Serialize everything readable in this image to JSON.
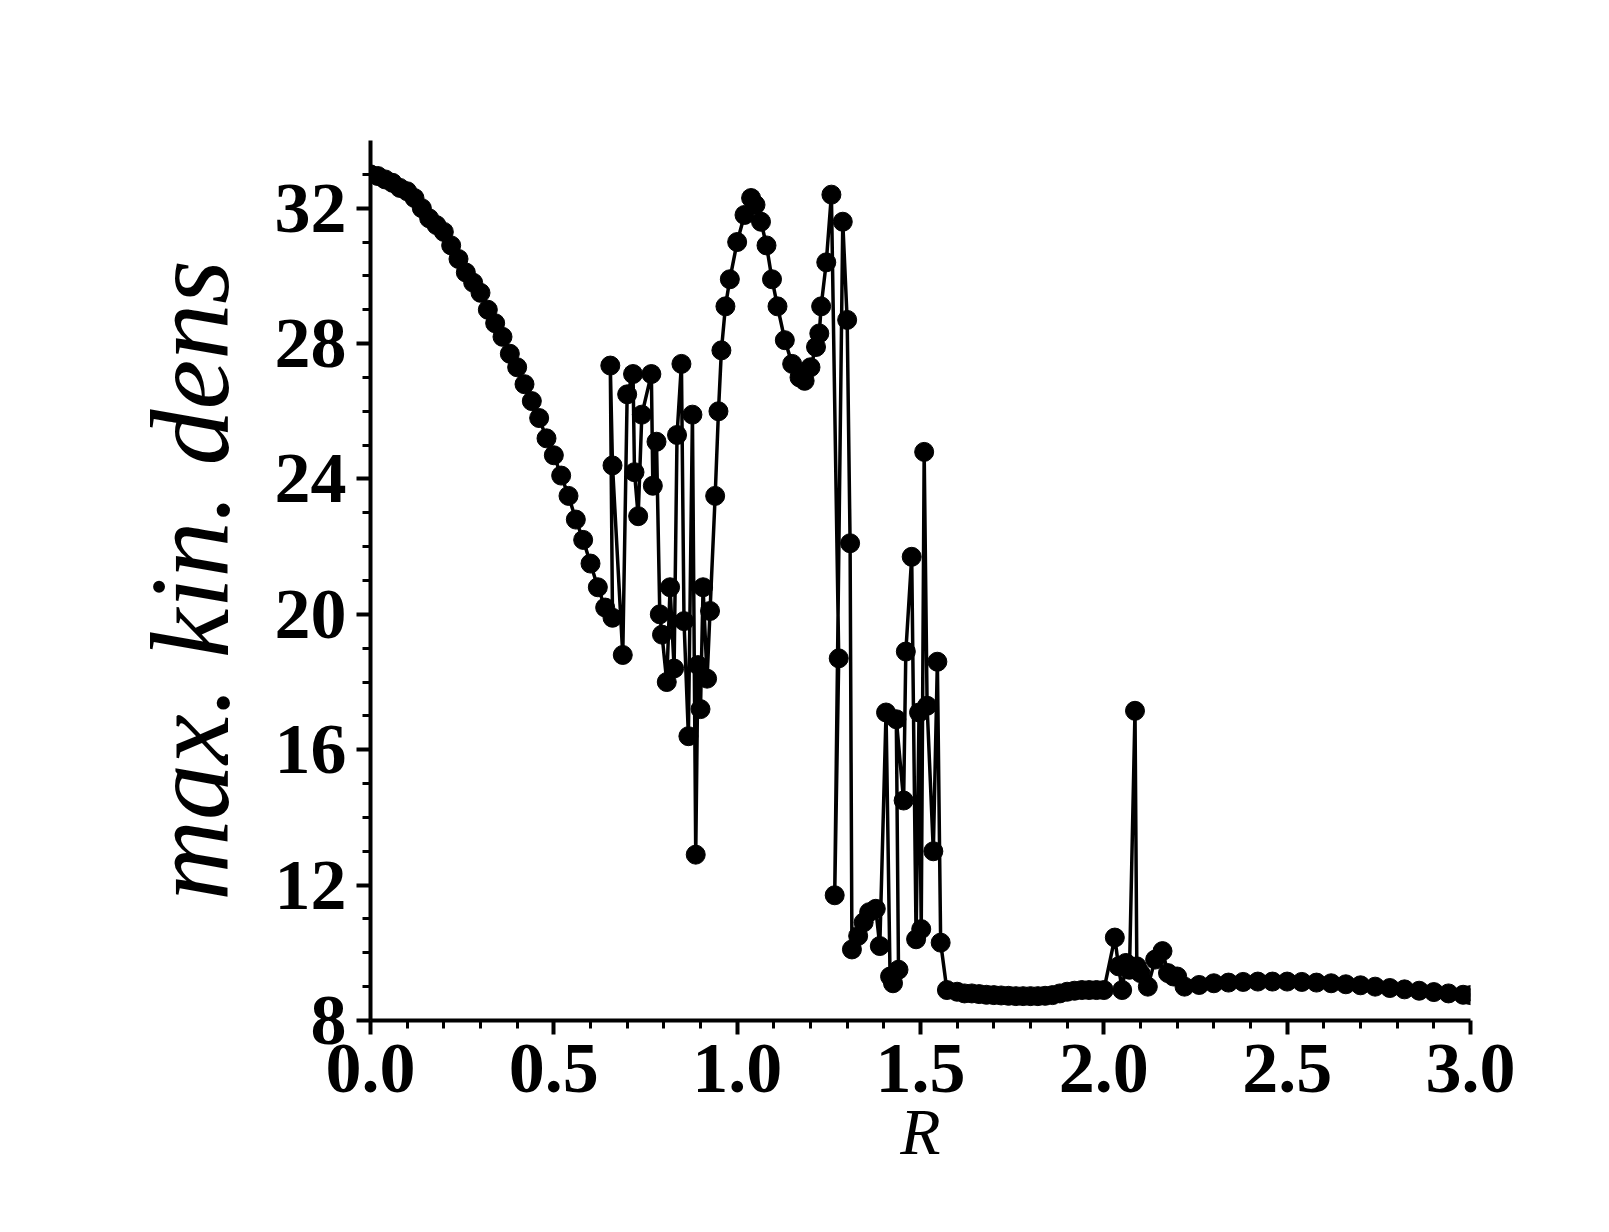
{
  "chart_data": {
    "type": "line",
    "xlabel": "R",
    "ylabel": "max. kin. dens",
    "marker": "circle",
    "line_style": "solid",
    "grid": false,
    "xlim": [
      0,
      3.0
    ],
    "ylim": [
      8,
      34
    ],
    "xticks": [
      {
        "value": 0,
        "label": "0.0"
      },
      {
        "value": 0.5,
        "label": "0.5"
      },
      {
        "value": 1.0,
        "label": "1.0"
      },
      {
        "value": 1.5,
        "label": "1.5"
      },
      {
        "value": 2.0,
        "label": "2.0"
      },
      {
        "value": 2.5,
        "label": "2.5"
      },
      {
        "value": 3.0,
        "label": "3.0"
      },
      {
        "value": 0.1,
        "label": null
      },
      {
        "value": 0.2,
        "label": null
      },
      {
        "value": 0.3,
        "label": null
      },
      {
        "value": 0.4,
        "label": null
      },
      {
        "value": 0.6,
        "label": null
      },
      {
        "value": 0.7,
        "label": null
      },
      {
        "value": 0.8,
        "label": null
      },
      {
        "value": 0.9,
        "label": null
      },
      {
        "value": 1.1,
        "label": null
      },
      {
        "value": 1.2,
        "label": null
      },
      {
        "value": 1.3,
        "label": null
      },
      {
        "value": 1.4,
        "label": null
      },
      {
        "value": 1.6,
        "label": null
      },
      {
        "value": 1.7,
        "label": null
      },
      {
        "value": 1.8,
        "label": null
      },
      {
        "value": 1.9,
        "label": null
      },
      {
        "value": 2.1,
        "label": null
      },
      {
        "value": 2.2,
        "label": null
      },
      {
        "value": 2.3,
        "label": null
      },
      {
        "value": 2.4,
        "label": null
      },
      {
        "value": 2.6,
        "label": null
      },
      {
        "value": 2.7,
        "label": null
      },
      {
        "value": 2.8,
        "label": null
      },
      {
        "value": 2.9,
        "label": null
      }
    ],
    "yticks": [
      8,
      12,
      16,
      20,
      24,
      28,
      32,
      {
        "value": 9,
        "label": null
      },
      {
        "value": 10,
        "label": null
      },
      {
        "value": 11,
        "label": null
      },
      {
        "value": 13,
        "label": null
      },
      {
        "value": 14,
        "label": null
      },
      {
        "value": 15,
        "label": null
      },
      {
        "value": 17,
        "label": null
      },
      {
        "value": 18,
        "label": null
      },
      {
        "value": 19,
        "label": null
      },
      {
        "value": 21,
        "label": null
      },
      {
        "value": 22,
        "label": null
      },
      {
        "value": 23,
        "label": null
      },
      {
        "value": 25,
        "label": null
      },
      {
        "value": 26,
        "label": null
      },
      {
        "value": 27,
        "label": null
      },
      {
        "value": 29,
        "label": null
      },
      {
        "value": 30,
        "label": null
      },
      {
        "value": 31,
        "label": null
      },
      {
        "value": 33,
        "label": null
      }
    ],
    "series": [
      {
        "color": "#000000",
        "x": [
          0,
          0.02,
          0.04,
          0.06,
          0.08,
          0.1,
          0.12,
          0.14,
          0.16,
          0.18,
          0.2,
          0.22,
          0.24,
          0.26,
          0.28,
          0.3,
          0.32,
          0.34,
          0.36,
          0.38,
          0.4,
          0.42,
          0.44,
          0.46,
          0.48,
          0.5,
          0.52,
          0.54,
          0.56,
          0.58,
          0.6,
          0.62,
          0.64,
          0.66,
          0.654,
          0.66,
          0.688,
          0.7,
          0.716,
          0.72,
          0.73,
          0.74,
          0.766,
          0.77,
          0.78,
          0.789,
          0.795,
          0.808,
          0.817,
          0.828,
          0.836,
          0.848,
          0.855,
          0.867,
          0.878,
          0.887,
          0.893,
          0.9,
          0.907,
          0.918,
          0.926,
          0.94,
          0.949,
          0.957,
          0.968,
          0.98,
          1.0,
          1.02,
          1.038,
          1.05,
          1.065,
          1.08,
          1.095,
          1.11,
          1.13,
          1.15,
          1.17,
          1.184,
          1.2,
          1.215,
          1.224,
          1.229,
          1.243,
          1.257,
          1.277,
          1.266,
          1.288,
          1.3,
          1.308,
          1.313,
          1.33,
          1.345,
          1.36,
          1.378,
          1.389,
          1.406,
          1.417,
          1.425,
          1.44,
          1.434,
          1.454,
          1.46,
          1.476,
          1.488,
          1.496,
          1.502,
          1.51,
          1.518,
          1.535,
          1.546,
          1.555,
          1.572,
          1.6,
          1.62,
          1.64,
          1.66,
          1.68,
          1.7,
          1.72,
          1.74,
          1.76,
          1.78,
          1.8,
          1.82,
          1.84,
          1.86,
          1.88,
          1.9,
          1.92,
          1.94,
          1.96,
          1.98,
          2.0,
          2.03,
          2.04,
          2.05,
          2.06,
          2.07,
          2.085,
          2.09,
          2.1,
          2.12,
          2.14,
          2.16,
          2.175,
          2.19,
          2.2,
          2.22,
          2.26,
          2.3,
          2.34,
          2.38,
          2.42,
          2.46,
          2.5,
          2.54,
          2.58,
          2.62,
          2.66,
          2.7,
          2.74,
          2.78,
          2.82,
          2.86,
          2.9,
          2.94,
          2.98,
          3.0
        ],
        "values": [
          33.0,
          32.95,
          32.85,
          32.75,
          32.6,
          32.5,
          32.3,
          32.0,
          31.7,
          31.5,
          31.3,
          30.9,
          30.5,
          30.1,
          29.8,
          29.5,
          29.0,
          28.6,
          28.2,
          27.7,
          27.3,
          26.8,
          26.3,
          25.8,
          25.2,
          24.7,
          24.1,
          23.5,
          22.8,
          22.2,
          21.5,
          20.8,
          20.2,
          19.9,
          27.35,
          24.4,
          18.8,
          26.5,
          27.1,
          24.2,
          22.9,
          25.9,
          27.1,
          23.8,
          25.1,
          20.0,
          19.4,
          18.0,
          20.8,
          18.4,
          25.3,
          27.4,
          19.8,
          16.4,
          25.9,
          12.9,
          18.5,
          17.2,
          20.8,
          18.1,
          20.1,
          23.5,
          26.0,
          27.8,
          29.1,
          29.9,
          31.0,
          31.8,
          32.3,
          32.1,
          31.6,
          30.9,
          29.9,
          29.1,
          28.1,
          27.4,
          27.0,
          26.9,
          27.3,
          27.9,
          28.3,
          29.1,
          30.4,
          32.4,
          18.7,
          11.7,
          31.6,
          28.7,
          22.1,
          10.1,
          10.5,
          10.9,
          11.2,
          11.3,
          10.2,
          17.1,
          9.3,
          9.1,
          9.5,
          16.9,
          14.5,
          18.9,
          21.7,
          10.4,
          17.1,
          10.7,
          24.8,
          17.3,
          13.0,
          18.6,
          10.3,
          8.9,
          8.85,
          8.8,
          8.8,
          8.78,
          8.76,
          8.75,
          8.74,
          8.73,
          8.72,
          8.72,
          8.72,
          8.72,
          8.73,
          8.75,
          8.8,
          8.85,
          8.88,
          8.9,
          8.9,
          8.9,
          8.9,
          10.45,
          9.6,
          8.9,
          9.7,
          9.5,
          17.15,
          9.6,
          9.4,
          9.0,
          9.8,
          10.05,
          9.4,
          9.3,
          9.3,
          9.0,
          9.05,
          9.1,
          9.12,
          9.14,
          9.15,
          9.15,
          9.15,
          9.14,
          9.12,
          9.1,
          9.07,
          9.04,
          9.0,
          8.96,
          8.92,
          8.88,
          8.84,
          8.8,
          8.76,
          8.75
        ]
      }
    ]
  }
}
